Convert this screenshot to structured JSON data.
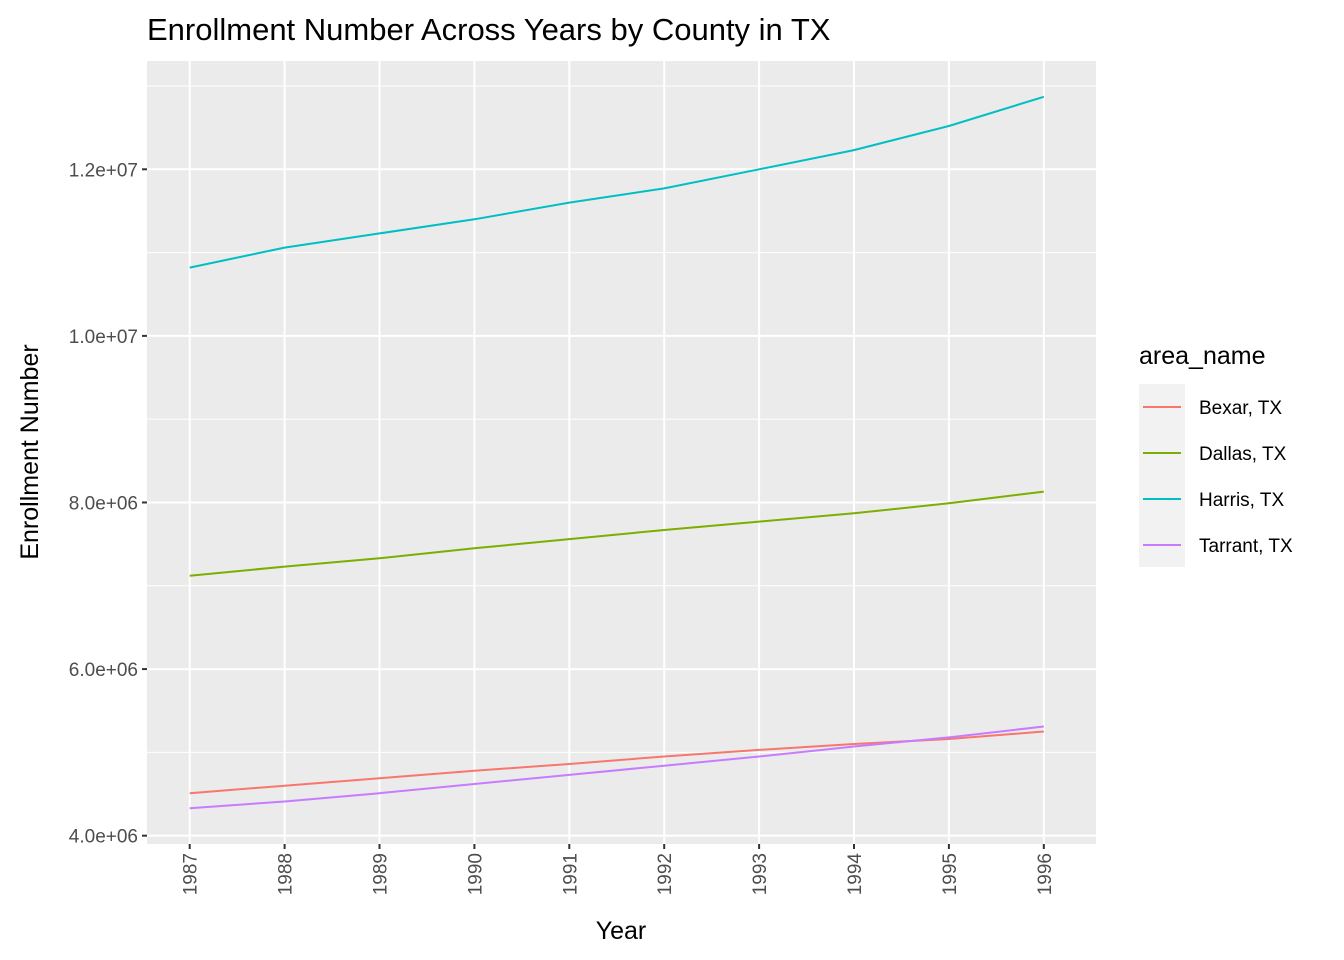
{
  "chart_data": {
    "type": "line",
    "title": "Enrollment Number Across Years by County in TX",
    "xlabel": "Year",
    "ylabel": "Enrollment Number",
    "x": [
      1987,
      1988,
      1989,
      1990,
      1991,
      1992,
      1993,
      1994,
      1995,
      1996
    ],
    "x_tick_labels": [
      "1987",
      "1988",
      "1989",
      "1990",
      "1991",
      "1992",
      "1993",
      "1994",
      "1995",
      "1996"
    ],
    "xlim": [
      1986.55,
      1996.55
    ],
    "ylim": [
      3900000,
      13300000
    ],
    "y_ticks": [
      4000000,
      6000000,
      8000000,
      10000000,
      12000000
    ],
    "y_tick_labels": [
      "4.0e+06",
      "6.0e+06",
      "8.0e+06",
      "1.0e+07",
      "1.2e+07"
    ],
    "grid": true,
    "legend": {
      "title": "area_name",
      "position": "right"
    },
    "series": [
      {
        "name": "Bexar, TX",
        "color": "#F8766D",
        "values": [
          4510000,
          4600000,
          4690000,
          4780000,
          4860000,
          4950000,
          5030000,
          5100000,
          5160000,
          5250000
        ]
      },
      {
        "name": "Dallas, TX",
        "color": "#7CAE00",
        "values": [
          7120000,
          7230000,
          7330000,
          7450000,
          7560000,
          7670000,
          7770000,
          7870000,
          7990000,
          8130000
        ]
      },
      {
        "name": "Harris, TX",
        "color": "#00BFC4",
        "values": [
          10820000,
          11060000,
          11230000,
          11400000,
          11600000,
          11770000,
          12000000,
          12230000,
          12520000,
          12870000
        ]
      },
      {
        "name": "Tarrant, TX",
        "color": "#C77CFF",
        "values": [
          4330000,
          4410000,
          4510000,
          4620000,
          4730000,
          4840000,
          4950000,
          5070000,
          5180000,
          5310000
        ]
      }
    ]
  }
}
